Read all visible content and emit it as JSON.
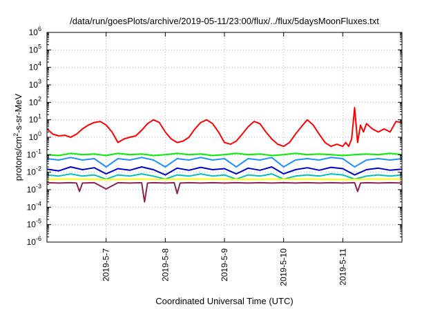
{
  "chart_data": {
    "type": "line",
    "title": "/data/run/goesPlots/archive/2019-05-11/23:00/flux/../flux/5daysMoonFluxes.txt",
    "xlabel": "Coordinated Universal Time (UTC)",
    "ylabel": "protons/cm2-s-sr-MeV",
    "ylabel_parts": {
      "base": "protons/cm",
      "sup": "2",
      "rest": "-s-sr-MeV"
    },
    "yscale": "log",
    "ylim": [
      1e-06,
      1000000.0
    ],
    "y_ticks": [
      {
        "exp": "-6",
        "value": 1e-06
      },
      {
        "exp": "-5",
        "value": 1e-05
      },
      {
        "exp": "-4",
        "value": 0.0001
      },
      {
        "exp": "-3",
        "value": 0.001
      },
      {
        "exp": "-2",
        "value": 0.01
      },
      {
        "exp": "-1",
        "value": 0.1
      },
      {
        "exp": "0",
        "value": 1
      },
      {
        "exp": "1",
        "value": 10
      },
      {
        "exp": "2",
        "value": 100
      },
      {
        "exp": "3",
        "value": 1000
      },
      {
        "exp": "4",
        "value": 10000
      },
      {
        "exp": "5",
        "value": 100000
      },
      {
        "exp": "6",
        "value": 1000000
      }
    ],
    "y_tick_base": "10",
    "x_ticks": [
      {
        "label": "2019-5-7",
        "day": 1
      },
      {
        "label": "2019-5-8",
        "day": 2
      },
      {
        "label": "2019-5-9",
        "day": 3
      },
      {
        "label": "2019-5-10",
        "day": 4
      },
      {
        "label": "2019-5-11",
        "day": 5
      }
    ],
    "x_range_note": "x values are days after 2019-05-06 00:00 UTC",
    "xlim": [
      0,
      6
    ],
    "grid": true,
    "series": [
      {
        "color": "#ff0000",
        "x": [
          0.0,
          0.1,
          0.2,
          0.3,
          0.4,
          0.5,
          0.6,
          0.7,
          0.8,
          0.9,
          1.0,
          1.1,
          1.2,
          1.3,
          1.4,
          1.5,
          1.6,
          1.7,
          1.8,
          1.9,
          2.0,
          2.1,
          2.2,
          2.3,
          2.4,
          2.5,
          2.6,
          2.7,
          2.8,
          2.9,
          3.0,
          3.1,
          3.2,
          3.3,
          3.4,
          3.5,
          3.6,
          3.7,
          3.8,
          3.9,
          4.0,
          4.1,
          4.2,
          4.3,
          4.4,
          4.5,
          4.6,
          4.7,
          4.8,
          4.9,
          5.0,
          5.05,
          5.1,
          5.15,
          5.2,
          5.25,
          5.3,
          5.35,
          5.4,
          5.5,
          5.6,
          5.7,
          5.8,
          5.9,
          6.0
        ],
        "y": [
          3,
          1.5,
          1.2,
          1.3,
          1.0,
          1.5,
          3,
          5,
          7,
          8,
          5,
          2,
          0.5,
          0.8,
          1.0,
          1.2,
          2.5,
          6,
          10,
          7,
          2,
          0.8,
          0.5,
          0.6,
          1.0,
          3,
          7,
          10,
          6,
          2,
          0.5,
          0.4,
          0.6,
          1.5,
          4,
          8,
          6,
          2,
          0.8,
          0.4,
          0.3,
          0.5,
          1.5,
          4,
          10,
          5,
          1.5,
          0.5,
          0.3,
          0.4,
          0.3,
          0.5,
          0.3,
          0.8,
          50,
          0.5,
          5,
          2,
          6,
          3,
          2,
          3,
          2,
          8,
          7
        ]
      },
      {
        "color": "#00ee00",
        "x": [
          0.0,
          0.2,
          0.4,
          0.6,
          0.8,
          1.0,
          1.2,
          1.4,
          1.6,
          1.8,
          2.0,
          2.2,
          2.4,
          2.6,
          2.8,
          3.0,
          3.2,
          3.4,
          3.6,
          3.8,
          4.0,
          4.2,
          4.4,
          4.6,
          4.8,
          5.0,
          5.2,
          5.4,
          5.6,
          5.8,
          6.0
        ],
        "y": [
          0.1,
          0.09,
          0.12,
          0.1,
          0.11,
          0.09,
          0.12,
          0.1,
          0.11,
          0.09,
          0.1,
          0.12,
          0.1,
          0.11,
          0.09,
          0.1,
          0.12,
          0.1,
          0.11,
          0.09,
          0.1,
          0.12,
          0.1,
          0.11,
          0.1,
          0.09,
          0.1,
          0.11,
          0.1,
          0.12,
          0.1
        ]
      },
      {
        "color": "#1e90ff",
        "x": [
          0.0,
          0.2,
          0.4,
          0.6,
          0.8,
          1.0,
          1.2,
          1.4,
          1.6,
          1.8,
          2.0,
          2.2,
          2.4,
          2.6,
          2.8,
          3.0,
          3.2,
          3.4,
          3.6,
          3.8,
          4.0,
          4.2,
          4.4,
          4.6,
          4.8,
          5.0,
          5.2,
          5.4,
          5.6,
          5.8,
          6.0
        ],
        "y": [
          0.06,
          0.05,
          0.07,
          0.05,
          0.06,
          0.02,
          0.06,
          0.05,
          0.07,
          0.05,
          0.02,
          0.06,
          0.05,
          0.07,
          0.05,
          0.06,
          0.02,
          0.06,
          0.05,
          0.07,
          0.02,
          0.05,
          0.06,
          0.05,
          0.07,
          0.06,
          0.02,
          0.05,
          0.06,
          0.05,
          0.06
        ]
      },
      {
        "color": "#0000cd",
        "x": [
          0.0,
          0.2,
          0.4,
          0.6,
          0.8,
          1.0,
          1.2,
          1.4,
          1.6,
          1.8,
          2.0,
          2.2,
          2.4,
          2.6,
          2.8,
          3.0,
          3.2,
          3.4,
          3.6,
          3.8,
          4.0,
          4.2,
          4.4,
          4.6,
          4.8,
          5.0,
          5.2,
          5.4,
          5.6,
          5.8,
          6.0
        ],
        "y": [
          0.015,
          0.012,
          0.02,
          0.014,
          0.018,
          0.008,
          0.016,
          0.013,
          0.02,
          0.014,
          0.007,
          0.017,
          0.013,
          0.019,
          0.014,
          0.016,
          0.008,
          0.017,
          0.013,
          0.02,
          0.008,
          0.014,
          0.018,
          0.013,
          0.019,
          0.016,
          0.007,
          0.014,
          0.017,
          0.013,
          0.015
        ]
      },
      {
        "color": "#00bfbf",
        "x": [
          0.0,
          0.2,
          0.4,
          0.6,
          0.8,
          1.0,
          1.2,
          1.4,
          1.6,
          1.8,
          2.0,
          2.2,
          2.4,
          2.6,
          2.8,
          3.0,
          3.2,
          3.4,
          3.6,
          3.8,
          4.0,
          4.2,
          4.4,
          4.6,
          4.8,
          5.0,
          5.2,
          5.4,
          5.6,
          5.8,
          6.0
        ],
        "y": [
          0.007,
          0.006,
          0.008,
          0.006,
          0.007,
          0.004,
          0.007,
          0.006,
          0.008,
          0.006,
          0.004,
          0.007,
          0.006,
          0.008,
          0.006,
          0.007,
          0.004,
          0.007,
          0.006,
          0.008,
          0.004,
          0.006,
          0.007,
          0.006,
          0.008,
          0.007,
          0.004,
          0.006,
          0.007,
          0.006,
          0.007
        ]
      },
      {
        "color": "#ffff00",
        "x": [
          0.0,
          0.5,
          1.0,
          1.5,
          2.0,
          2.5,
          3.0,
          3.5,
          4.0,
          4.5,
          5.0,
          5.5,
          6.0
        ],
        "y": [
          0.004,
          0.004,
          0.0038,
          0.004,
          0.0039,
          0.004,
          0.004,
          0.0039,
          0.004,
          0.004,
          0.0038,
          0.004,
          0.004
        ]
      },
      {
        "color": "#8b2252",
        "x": [
          0.0,
          0.2,
          0.4,
          0.5,
          0.55,
          0.6,
          0.8,
          1.0,
          1.2,
          1.4,
          1.6,
          1.65,
          1.7,
          1.8,
          2.0,
          2.15,
          2.2,
          2.25,
          2.4,
          2.6,
          2.8,
          3.0,
          3.2,
          3.4,
          3.6,
          3.8,
          4.0,
          4.2,
          4.4,
          4.6,
          4.8,
          5.0,
          5.2,
          5.25,
          5.3,
          5.4,
          5.6,
          5.8,
          6.0
        ],
        "y": [
          0.0025,
          0.0024,
          0.0025,
          0.0024,
          0.0008,
          0.0024,
          0.0025,
          0.0011,
          0.0025,
          0.0024,
          0.0025,
          0.0002,
          0.0024,
          0.0025,
          0.0024,
          0.0025,
          0.0006,
          0.0024,
          0.0025,
          0.0024,
          0.0025,
          0.0024,
          0.0025,
          0.0024,
          0.0025,
          0.0024,
          0.0025,
          0.0024,
          0.0025,
          0.0024,
          0.0025,
          0.0024,
          0.0025,
          0.0008,
          0.0024,
          0.0025,
          0.0024,
          0.0025,
          0.0024
        ]
      }
    ]
  }
}
